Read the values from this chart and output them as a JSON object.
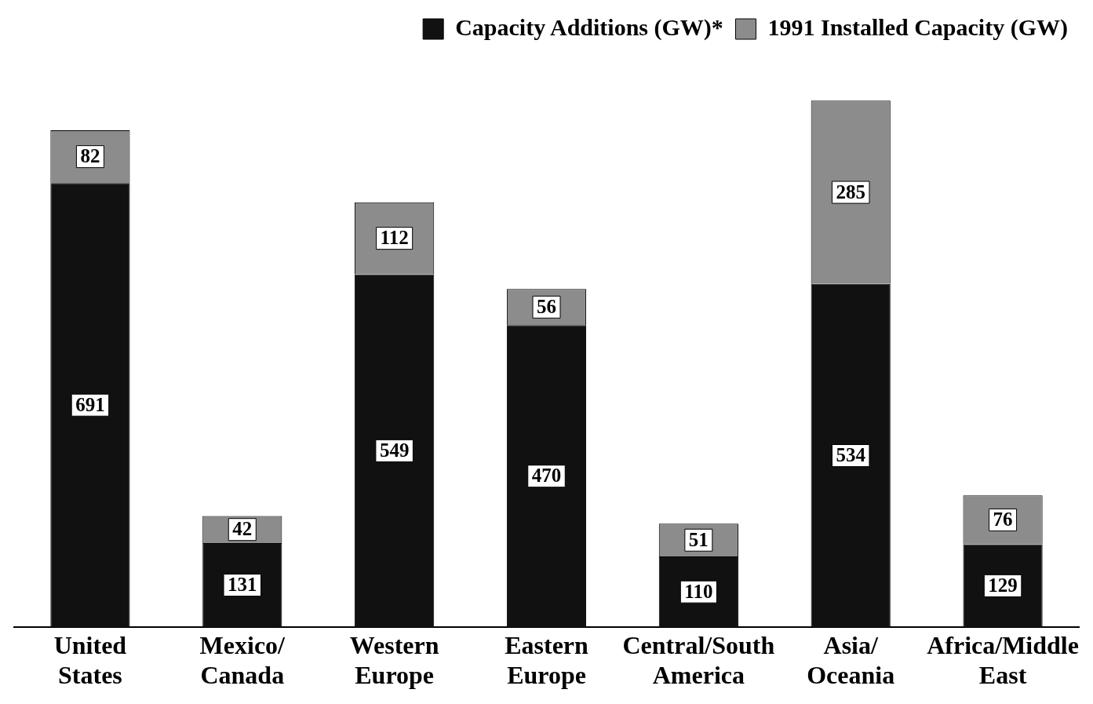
{
  "chart_data": {
    "type": "bar",
    "stacked": true,
    "categories": [
      "United States",
      "Mexico/Canada",
      "Western Europe",
      "Eastern Europe",
      "Central/South America",
      "Asia/Oceania",
      "Africa/Middle East"
    ],
    "series": [
      {
        "name": "Capacity Additions (GW)*",
        "color": "#111111",
        "values": [
          691,
          131,
          549,
          470,
          110,
          534,
          129
        ]
      },
      {
        "name": "1991 Installed Capacity (GW)",
        "color": "#8c8c8c",
        "values": [
          82,
          42,
          112,
          56,
          51,
          285,
          76
        ]
      }
    ],
    "data_labels": true,
    "legend": "top right",
    "grid": false
  }
}
